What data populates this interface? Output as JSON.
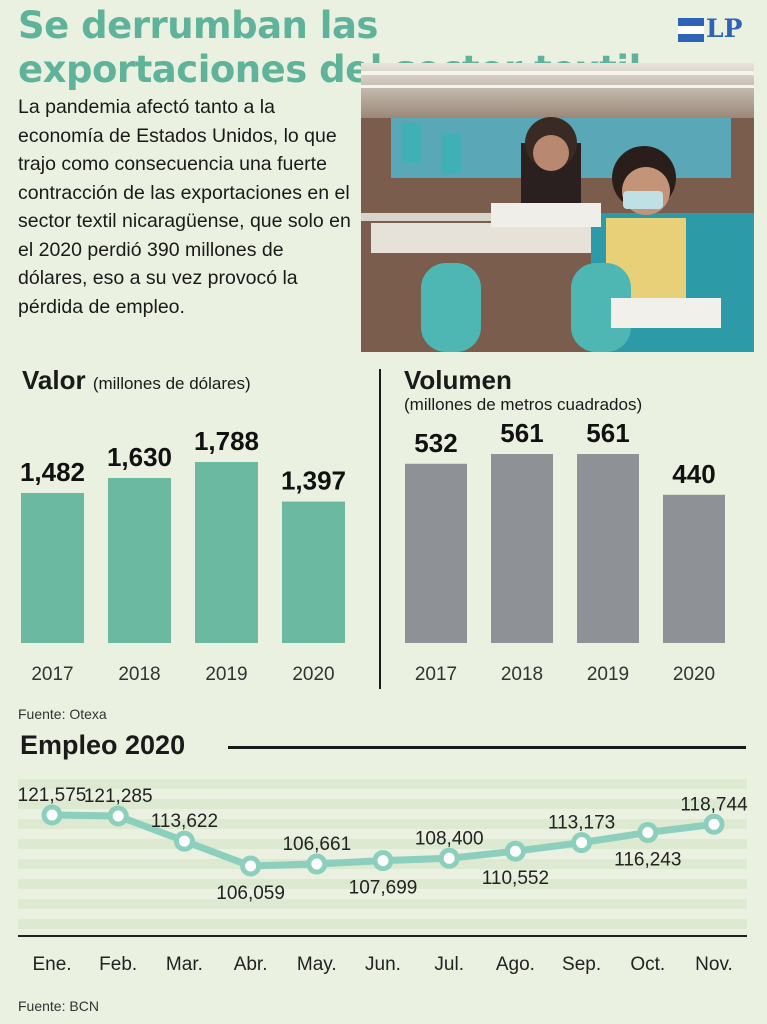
{
  "headline": "Se derrumban las exportaciones del sector textil",
  "logo": {
    "text": "LP",
    "colors": {
      "blue": "#2d64b8",
      "white": "#ffffff"
    }
  },
  "intro_text": "La pandemia afectó tanto a la economía de Estados Unidos, lo que trajo como consecuencia una fuerte contracción de las exportaciones en el sector textil nicaragüense, que solo en el 2020 perdió 390 millones de dólares, eso a su vez provocó la pérdida de empleo.",
  "colors": {
    "accent": "#5fb39a",
    "bars_valor": "#6ab9a0",
    "bars_volumen": "#8e9296",
    "line": "#8ccfbd",
    "marker_stroke": "#8ccfbd"
  },
  "valor": {
    "title": "Valor",
    "unit": "(millones de dólares)"
  },
  "volumen": {
    "title": "Volumen",
    "unit": "(millones de metros cuadrados)"
  },
  "source_exports": "Fuente: Otexa",
  "empleo": {
    "title": "Empleo 2020"
  },
  "source_empleo": "Fuente: BCN",
  "chart_data": [
    {
      "type": "bar",
      "title": "Valor",
      "ylabel": "(millones de dólares)",
      "categories": [
        "2017",
        "2018",
        "2019",
        "2020"
      ],
      "values": [
        1482,
        1630,
        1788,
        1397
      ],
      "value_labels": [
        "1,482",
        "1,630",
        "1,788",
        "1,397"
      ],
      "ylim": [
        0,
        1788
      ],
      "grid": false
    },
    {
      "type": "bar",
      "title": "Volumen",
      "ylabel": "(millones de metros cuadrados)",
      "categories": [
        "2017",
        "2018",
        "2019",
        "2020"
      ],
      "values": [
        532,
        561,
        561,
        440
      ],
      "value_labels": [
        "532",
        "561",
        "561",
        "440"
      ],
      "ylim": [
        0,
        561
      ],
      "grid": false
    },
    {
      "type": "line",
      "title": "Empleo 2020",
      "categories": [
        "Ene.",
        "Feb.",
        "Mar.",
        "Abr.",
        "May.",
        "Jun.",
        "Jul.",
        "Ago.",
        "Sep.",
        "Oct.",
        "Nov."
      ],
      "values": [
        121575,
        121285,
        113622,
        106059,
        106661,
        107699,
        108400,
        110552,
        113173,
        116243,
        118744
      ],
      "value_labels": [
        "121,575",
        "121,285",
        "113,622",
        "106,059",
        "106,661",
        "107,699",
        "108,400",
        "110,552",
        "113,173",
        "116,243",
        "118,744"
      ],
      "label_position": [
        "above",
        "above",
        "above",
        "below",
        "above",
        "below",
        "above",
        "below",
        "above",
        "below",
        "above"
      ],
      "grid": true
    }
  ]
}
